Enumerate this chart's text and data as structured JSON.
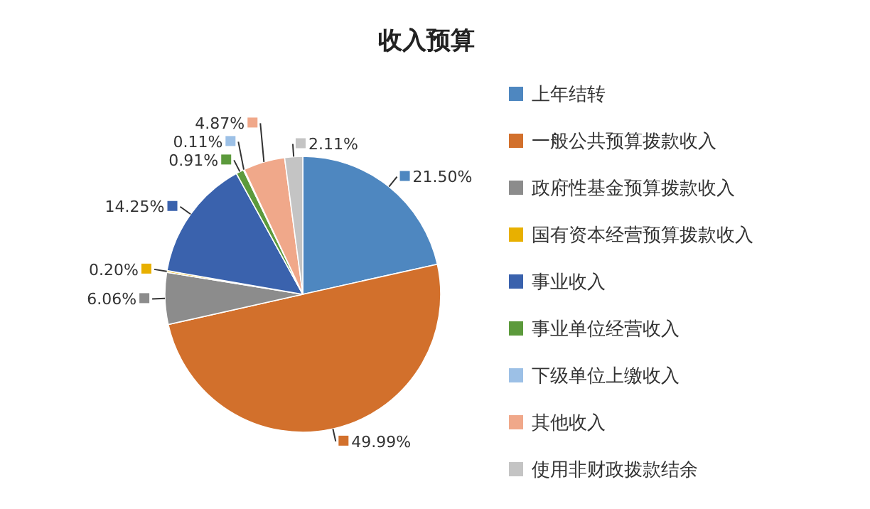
{
  "chart_data": {
    "type": "pie",
    "title": "收入预算",
    "categories": [
      "上年结转",
      "一般公共预算拨款收入",
      "政府性基金预算拨款收入",
      "国有资本经营预算拨款收入",
      "事业收入",
      "事业单位经营收入",
      "下级单位上缴收入",
      "其他收入",
      "使用非财政拨款结余"
    ],
    "values": [
      21.5,
      49.99,
      6.06,
      0.2,
      14.25,
      0.91,
      0.11,
      4.87,
      2.11
    ],
    "value_labels": [
      "21.50%",
      "49.99%",
      "6.06%",
      "0.20%",
      "14.25%",
      "0.91%",
      "0.11%",
      "4.87%",
      "2.11%"
    ],
    "colors": [
      "#4e87c0",
      "#d2702c",
      "#8c8c8c",
      "#e8b000",
      "#3a62ad",
      "#5c9a3c",
      "#9cc0e6",
      "#f0a88a",
      "#c4c4c4"
    ],
    "legend": "right"
  }
}
